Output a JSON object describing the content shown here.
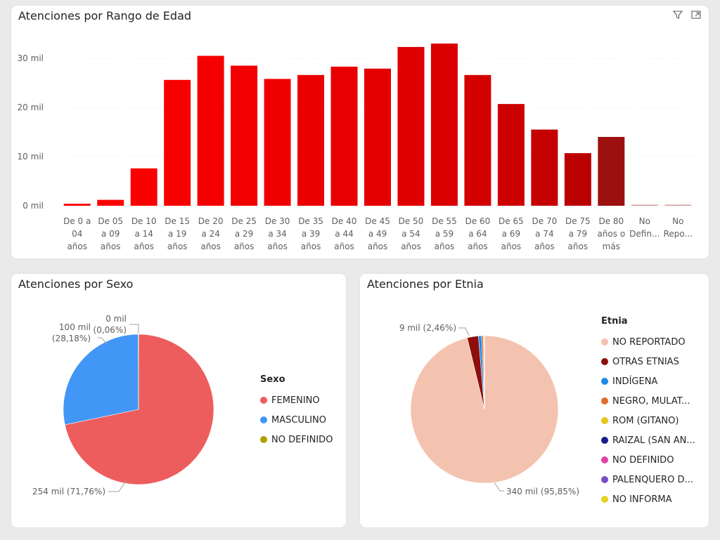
{
  "age_card": {
    "title": "Atenciones por Rango de Edad",
    "icons": [
      "filter-icon",
      "focus-mode-icon"
    ]
  },
  "sex_card": {
    "title": "Atenciones por Sexo",
    "legend_title": "Sexo"
  },
  "eth_card": {
    "title": "Atenciones por Etnia",
    "legend_title": "Etnia"
  },
  "chart_data": [
    {
      "type": "bar",
      "title": "Atenciones por Rango de Edad",
      "categories": [
        [
          "De 0 a",
          "04",
          "años"
        ],
        [
          "De 05",
          "a 09",
          "años"
        ],
        [
          "De 10",
          "a 14",
          "años"
        ],
        [
          "De 15",
          "a 19",
          "años"
        ],
        [
          "De 20",
          "a 24",
          "años"
        ],
        [
          "De 25",
          "a 29",
          "años"
        ],
        [
          "De 30",
          "a 34",
          "años"
        ],
        [
          "De 35",
          "a 39",
          "años"
        ],
        [
          "De 40",
          "a 44",
          "años"
        ],
        [
          "De 45",
          "a 49",
          "años"
        ],
        [
          "De 50",
          "a 54",
          "años"
        ],
        [
          "De 55",
          "a 59",
          "años"
        ],
        [
          "De 60",
          "a 64",
          "años"
        ],
        [
          "De 65",
          "a 69",
          "años"
        ],
        [
          "De 70",
          "a 74",
          "años"
        ],
        [
          "De 75",
          "a 79",
          "años"
        ],
        [
          "De 80",
          "años o",
          "más"
        ],
        [
          "No",
          "Defin..."
        ],
        [
          "No",
          "Repo..."
        ]
      ],
      "values": [
        400,
        1200,
        7600,
        25600,
        30500,
        28500,
        25800,
        26600,
        28300,
        27900,
        32300,
        33000,
        26600,
        20700,
        15500,
        10700,
        14000,
        200,
        200
      ],
      "colors": [
        "#ff0000",
        "#fd0000",
        "#fa0000",
        "#f70000",
        "#f40000",
        "#f10000",
        "#ee0000",
        "#eb0000",
        "#e80000",
        "#e40000",
        "#df0000",
        "#da0000",
        "#d30000",
        "#cc0000",
        "#c40000",
        "#bb0000",
        "#9d1010",
        "#d99a9a",
        "#d99a9a"
      ],
      "y_ticks": [
        0,
        10000,
        20000,
        30000
      ],
      "y_tick_labels": [
        "0 mil",
        "10 mil",
        "20 mil",
        "30 mil"
      ],
      "ylim": [
        0,
        35000
      ],
      "grid": true,
      "xlabel": "",
      "ylabel": ""
    },
    {
      "type": "pie",
      "title": "Atenciones por Sexo",
      "labels": [
        "FEMENINO",
        "MASCULINO",
        "NO DEFINIDO"
      ],
      "values": [
        254,
        100,
        0.2
      ],
      "colors": [
        "#ed5d5d",
        "#4296f5",
        "#b0a000"
      ],
      "data_labels": [
        [
          "254 mil (71,76%)"
        ],
        [
          "100 mil",
          "(28,18%)"
        ],
        [
          "0 mil",
          "(0,06%)"
        ]
      ]
    },
    {
      "type": "pie",
      "title": "Atenciones por Etnia",
      "labels": [
        "NO REPORTADO",
        "OTRAS ETNIAS",
        "INDÍGENA",
        "NEGRO, MULAT...",
        "ROM (GITANO)",
        "RAIZAL (SAN AN...",
        "NO DEFINIDO",
        "PALENQUERO D...",
        "NO INFORMA"
      ],
      "values": [
        340,
        8.7,
        2.4,
        1.4,
        0.3,
        0.2,
        0.1,
        0.1,
        0.1
      ],
      "colors": [
        "#f4c3b0",
        "#8e0e0e",
        "#1f8ae6",
        "#e06c2e",
        "#e6c51e",
        "#1a1a8c",
        "#e040a8",
        "#7a4ec2",
        "#e8d020"
      ],
      "data_labels": [
        [
          "340 mil (95,85%)"
        ],
        [
          "9 mil (2,46%)"
        ]
      ]
    }
  ]
}
